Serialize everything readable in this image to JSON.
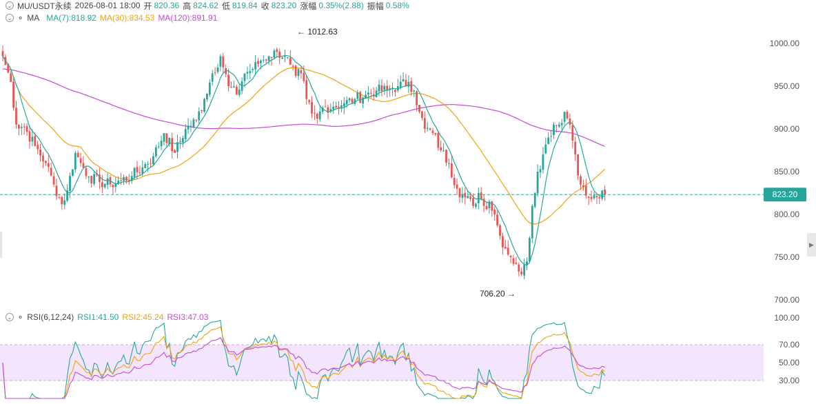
{
  "header": {
    "symbol": "MU/USDT永续",
    "datetime": "2026-08-01 18:00",
    "open_label": "开",
    "open": "820.36",
    "high_label": "高",
    "high": "824.62",
    "low_label": "低",
    "low": "819.84",
    "close_label": "收",
    "close": "823.20",
    "change_label": "涨幅",
    "change": "0.35%(2.88)",
    "amp_label": "振幅",
    "amp": "0.58%"
  },
  "ma_legend": {
    "name": "MA",
    "ma7": "MA(7):818.92",
    "ma30": "MA(30):834.53",
    "ma120": "MA(120):891.91"
  },
  "rsi_legend": {
    "name": "RSI(6,12,24)",
    "rsi1": "RSI1:41.50",
    "rsi2": "RSI2:45.24",
    "rsi3": "RSI3:47.03"
  },
  "colors": {
    "up": "#26a69a",
    "down": "#ef5350",
    "ma7": "#26a69a",
    "ma30": "#f0a30a",
    "ma120": "#c44ad6",
    "rsi_band": "#f3e5fb"
  },
  "chart_data": [
    {
      "type": "candlestick",
      "price_ticks": [
        "1000.00",
        "950.00",
        "900.00",
        "850.00",
        "800.00",
        "750.00",
        "700.00"
      ],
      "ylim": [
        700,
        1020
      ],
      "last_price": "823.20",
      "high_marker": "1012.63",
      "low_marker": "706.20",
      "anchors": [
        [
          0,
          985
        ],
        [
          3,
          955
        ],
        [
          5,
          905
        ],
        [
          8,
          902
        ],
        [
          12,
          880
        ],
        [
          16,
          860
        ],
        [
          19,
          835
        ],
        [
          22,
          812
        ],
        [
          24,
          828
        ],
        [
          27,
          872
        ],
        [
          29,
          860
        ],
        [
          32,
          844
        ],
        [
          36,
          838
        ],
        [
          40,
          835
        ],
        [
          44,
          840
        ],
        [
          48,
          845
        ],
        [
          52,
          855
        ],
        [
          56,
          868
        ],
        [
          60,
          895
        ],
        [
          64,
          872
        ],
        [
          68,
          900
        ],
        [
          72,
          910
        ],
        [
          75,
          935
        ],
        [
          78,
          965
        ],
        [
          81,
          985
        ],
        [
          84,
          950
        ],
        [
          87,
          940
        ],
        [
          90,
          965
        ],
        [
          93,
          970
        ],
        [
          96,
          980
        ],
        [
          99,
          985
        ],
        [
          102,
          990
        ],
        [
          105,
          985
        ],
        [
          107,
          975
        ],
        [
          109,
          962
        ],
        [
          111,
          965
        ],
        [
          113,
          935
        ],
        [
          115,
          918
        ],
        [
          117,
          912
        ],
        [
          119,
          925
        ],
        [
          123,
          926
        ],
        [
          127,
          930
        ],
        [
          131,
          935
        ],
        [
          135,
          940
        ],
        [
          139,
          945
        ],
        [
          143,
          945
        ],
        [
          147,
          950
        ],
        [
          151,
          955
        ],
        [
          153,
          945
        ],
        [
          155,
          920
        ],
        [
          157,
          900
        ],
        [
          160,
          895
        ],
        [
          163,
          875
        ],
        [
          166,
          860
        ],
        [
          169,
          830
        ],
        [
          172,
          820
        ],
        [
          175,
          810
        ],
        [
          177,
          825
        ],
        [
          179,
          810
        ],
        [
          181,
          815
        ],
        [
          183,
          800
        ],
        [
          185,
          775
        ],
        [
          187,
          760
        ],
        [
          189,
          750
        ],
        [
          191,
          742
        ],
        [
          193,
          730
        ],
        [
          195,
          745
        ],
        [
          197,
          810
        ],
        [
          199,
          850
        ],
        [
          201,
          870
        ],
        [
          203,
          890
        ],
        [
          205,
          905
        ],
        [
          207,
          905
        ],
        [
          209,
          920
        ],
        [
          211,
          905
        ],
        [
          213,
          870
        ],
        [
          215,
          835
        ],
        [
          217,
          822
        ],
        [
          219,
          818
        ],
        [
          221,
          820
        ],
        [
          224,
          823
        ]
      ],
      "ma7_last": 818.92,
      "ma30_last": 834.53,
      "ma120_last": 891.91
    },
    {
      "type": "line",
      "title": "RSI(6,12,24)",
      "rsi_ticks": [
        "100.00",
        "70.00",
        "50.00",
        "30.00"
      ],
      "ylim": [
        0,
        100
      ],
      "band": [
        30,
        70
      ],
      "series": [
        {
          "name": "RSI1",
          "last": 41.5
        },
        {
          "name": "RSI2",
          "last": 45.24
        },
        {
          "name": "RSI3",
          "last": 47.03
        }
      ]
    }
  ]
}
